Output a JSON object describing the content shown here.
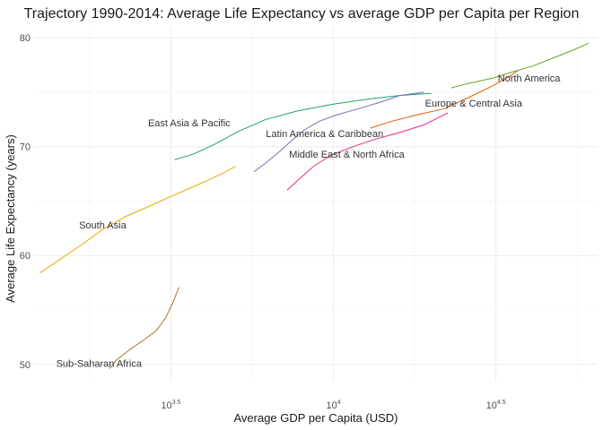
{
  "chart_data": {
    "type": "line",
    "title": "Trajectory 1990-2014: Average Life Expectancy vs average GDP per Capita per Region",
    "xlabel": "Average GDP per Capita (USD)",
    "ylabel": "Average Life Expectancy (years)",
    "x_scale": "log10",
    "xlim": [
      1200,
      65000
    ],
    "ylim": [
      48.5,
      81
    ],
    "x_ticks": [
      {
        "value": 3162.28,
        "base": "10",
        "exp": "3.5"
      },
      {
        "value": 10000,
        "base": "10",
        "exp": "4"
      },
      {
        "value": 31622.8,
        "base": "10",
        "exp": "4.5"
      }
    ],
    "y_ticks": [
      {
        "value": 50,
        "label": "50"
      },
      {
        "value": 60,
        "label": "60"
      },
      {
        "value": 70,
        "label": "70"
      },
      {
        "value": 80,
        "label": "80"
      }
    ],
    "grid": true,
    "legend": "none",
    "series": [
      {
        "name": "East Asia & Pacific",
        "color": "#1b9e77",
        "points": [
          [
            3240,
            68.8
          ],
          [
            3700,
            69.3
          ],
          [
            4300,
            70.2
          ],
          [
            5100,
            71.4
          ],
          [
            6200,
            72.5
          ],
          [
            7800,
            73.3
          ],
          [
            10000,
            73.9
          ],
          [
            13000,
            74.4
          ],
          [
            16000,
            74.7
          ],
          [
            20000,
            74.9
          ]
        ],
        "label_at": [
          3600,
          72.2
        ]
      },
      {
        "name": "Europe & Central Asia",
        "color": "#d95f02",
        "points": [
          [
            13000,
            71.7
          ],
          [
            15000,
            72.3
          ],
          [
            18000,
            72.9
          ],
          [
            22000,
            73.5
          ],
          [
            26000,
            74.5
          ],
          [
            31000,
            75.6
          ],
          [
            35000,
            76.5
          ],
          [
            37000,
            77.0
          ]
        ],
        "label_at": [
          27000,
          74.0
        ]
      },
      {
        "name": "Latin America & Caribbean",
        "color": "#7570b3",
        "points": [
          [
            5700,
            67.7
          ],
          [
            6200,
            68.5
          ],
          [
            6800,
            69.5
          ],
          [
            7400,
            70.5
          ],
          [
            8100,
            71.5
          ],
          [
            9000,
            72.3
          ],
          [
            10200,
            72.9
          ],
          [
            12000,
            73.5
          ],
          [
            14000,
            74.1
          ],
          [
            16000,
            74.7
          ],
          [
            19000,
            75.0
          ]
        ],
        "label_at": [
          9400,
          71.2
        ]
      },
      {
        "name": "Middle East & North Africa",
        "color": "#e7298a",
        "points": [
          [
            7200,
            66.0
          ],
          [
            7900,
            67.1
          ],
          [
            8700,
            68.2
          ],
          [
            9800,
            69.2
          ],
          [
            11500,
            70.0
          ],
          [
            13500,
            70.7
          ],
          [
            16000,
            71.3
          ],
          [
            19000,
            72.0
          ],
          [
            22500,
            73.1
          ]
        ],
        "label_at": [
          11000,
          69.3
        ]
      },
      {
        "name": "North America",
        "color": "#66a61e",
        "points": [
          [
            23000,
            75.4
          ],
          [
            26000,
            75.8
          ],
          [
            31000,
            76.3
          ],
          [
            35000,
            76.8
          ],
          [
            41000,
            77.4
          ],
          [
            48000,
            78.2
          ],
          [
            55000,
            78.9
          ],
          [
            61000,
            79.5
          ]
        ],
        "label_at": [
          40000,
          76.3
        ]
      },
      {
        "name": "South Asia",
        "color": "#e6ab02",
        "points": [
          [
            1250,
            58.4
          ],
          [
            1450,
            59.7
          ],
          [
            1700,
            61.1
          ],
          [
            1950,
            62.4
          ],
          [
            2300,
            63.6
          ],
          [
            2700,
            64.5
          ],
          [
            3200,
            65.5
          ],
          [
            3900,
            66.6
          ],
          [
            4600,
            67.6
          ],
          [
            5000,
            68.2
          ]
        ],
        "label_at": [
          1950,
          62.8
        ]
      },
      {
        "name": "Sub-Saharan Africa",
        "color": "#a6761d",
        "points": [
          [
            2050,
            49.6
          ],
          [
            2150,
            50.4
          ],
          [
            2350,
            51.3
          ],
          [
            2600,
            52.2
          ],
          [
            2850,
            53.1
          ],
          [
            3050,
            54.3
          ],
          [
            3200,
            55.6
          ],
          [
            3350,
            57.1
          ]
        ],
        "label_at": [
          1900,
          50.1
        ]
      }
    ]
  }
}
